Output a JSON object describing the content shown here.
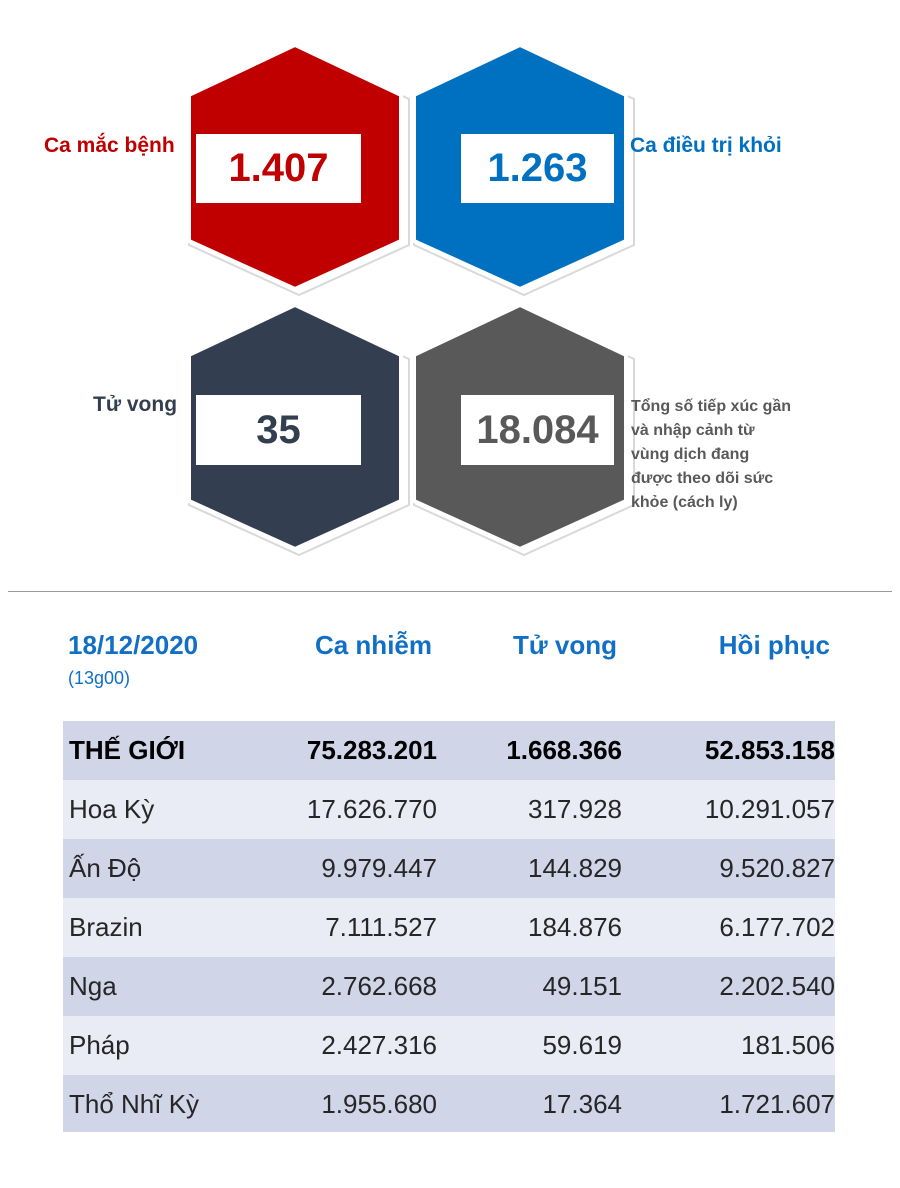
{
  "stats": {
    "cases": {
      "label": "Ca mắc bệnh",
      "value": "1.407",
      "color": "#c00000"
    },
    "recovered": {
      "label": "Ca điều trị khỏi",
      "value": "1.263",
      "color": "#0070c0"
    },
    "deaths": {
      "label": "Tử vong",
      "value": "35",
      "color": "#333f50"
    },
    "monitored": {
      "label_lines": [
        "Tổng số tiếp xúc gần",
        "và nhập cảnh từ",
        "vùng dịch đang",
        "được theo dõi sức",
        "khỏe (cách ly)"
      ],
      "value": "18.084",
      "color": "#595959"
    }
  },
  "table": {
    "date": "18/12/2020",
    "time": "(13g00)",
    "headers": [
      "Ca nhiễm",
      "Tử vong",
      "Hồi phục"
    ],
    "rows": [
      [
        "THẾ GIỚI",
        "75.283.201",
        "1.668.366",
        "52.853.158"
      ],
      [
        "Hoa Kỳ",
        "17.626.770",
        "317.928",
        "10.291.057"
      ],
      [
        "Ấn Độ",
        "9.979.447",
        "144.829",
        "9.520.827"
      ],
      [
        "Brazin",
        "7.111.527",
        "184.876",
        "6.177.702"
      ],
      [
        "Nga",
        "2.762.668",
        "49.151",
        "2.202.540"
      ],
      [
        "Pháp",
        "2.427.316",
        "59.619",
        "181.506"
      ],
      [
        "Thổ Nhĩ Kỳ",
        "1.955.680",
        "17.364",
        "1.721.607"
      ]
    ],
    "row_colors": [
      "#d0d5e8",
      "#e9ebf5"
    ]
  }
}
